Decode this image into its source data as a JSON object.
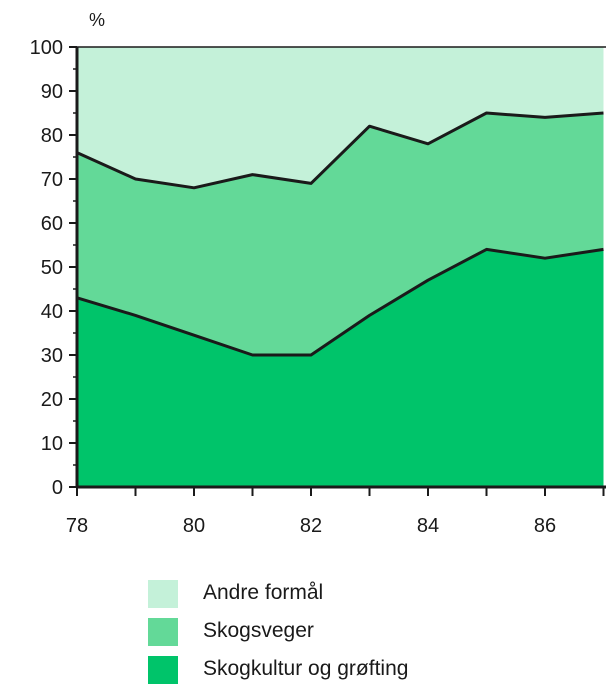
{
  "chart_data": {
    "type": "area",
    "stacked": true,
    "y_unit_label": "%",
    "x": [
      78,
      79,
      80,
      81,
      82,
      83,
      84,
      85,
      86,
      87
    ],
    "x_ticks": [
      "78",
      "80",
      "82",
      "84",
      "86"
    ],
    "y_ticks": [
      "0",
      "10",
      "20",
      "30",
      "40",
      "50",
      "60",
      "70",
      "80",
      "90",
      "100"
    ],
    "ylim": [
      0,
      100
    ],
    "grid": false,
    "legend_position": "bottom",
    "series": [
      {
        "name": "Skogkultur og grøfting",
        "values": [
          43,
          39,
          34.5,
          30,
          30,
          39,
          47,
          54,
          52,
          54
        ],
        "color": "#00c46a"
      },
      {
        "name": "Skogsveger",
        "values": [
          33,
          31,
          33.5,
          41,
          39,
          43,
          31,
          31,
          32,
          31
        ],
        "color": "#63d998"
      },
      {
        "name": "Andre formål",
        "values": [
          24,
          30,
          32,
          29,
          31,
          18,
          22,
          15,
          16,
          15
        ],
        "color": "#c4f1d9"
      }
    ]
  }
}
